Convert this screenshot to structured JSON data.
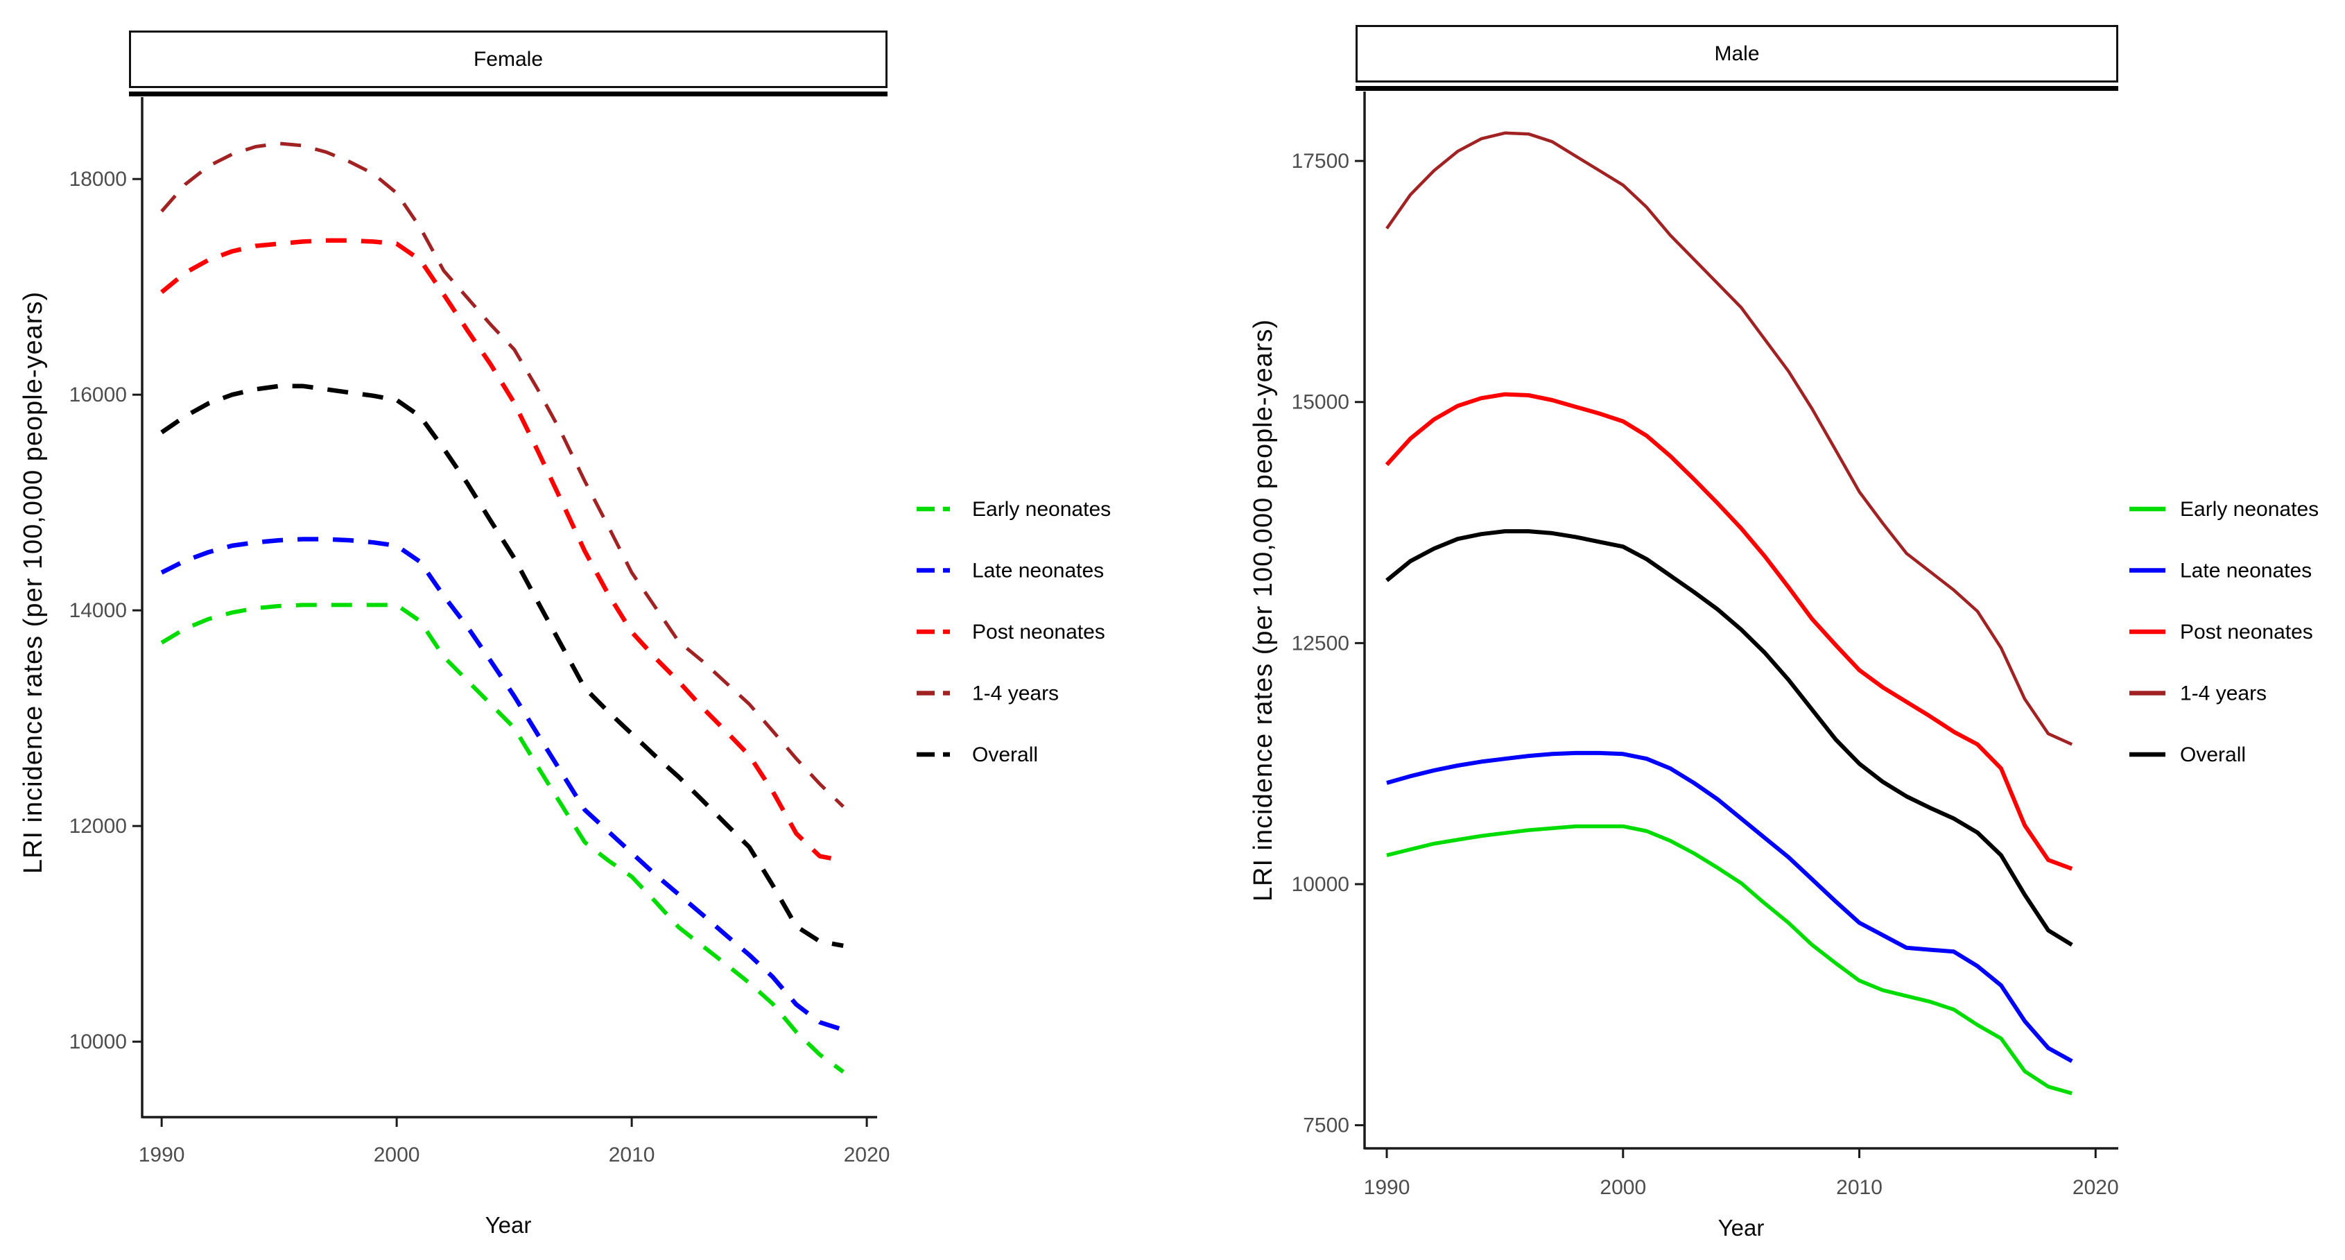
{
  "figure": {
    "background": "#ffffff"
  },
  "chart_data": [
    {
      "type": "line",
      "title": "Female",
      "xlabel": "Year",
      "ylabel": "LRI incidence rates (per 100,000 people-years)",
      "line_style": "dashed",
      "legend_position": "right",
      "grid": false,
      "xlim": [
        1989.17,
        2020.44
      ],
      "ylim": [
        9300,
        18760
      ],
      "xticks": [
        1990,
        2000,
        2010,
        2020
      ],
      "yticks": [
        10000,
        12000,
        14000,
        16000,
        18000
      ],
      "years": [
        1990,
        1991,
        1992,
        1993,
        1994,
        1995,
        1996,
        1997,
        1998,
        1999,
        2000,
        2001,
        2002,
        2003,
        2004,
        2005,
        2006,
        2007,
        2008,
        2009,
        2010,
        2011,
        2012,
        2013,
        2014,
        2015,
        2016,
        2017,
        2018,
        2019
      ],
      "series": [
        {
          "name": "Early neonates",
          "color": "#00DC00",
          "width": 6,
          "values": [
            13700,
            13830,
            13920,
            13980,
            14020,
            14040,
            14050,
            14050,
            14050,
            14050,
            14050,
            13900,
            13570,
            13350,
            13130,
            12910,
            12550,
            12200,
            11850,
            11680,
            11530,
            11300,
            11060,
            10890,
            10720,
            10545,
            10350,
            10090,
            9880,
            9720
          ]
        },
        {
          "name": "Late neonates",
          "color": "#0000FF",
          "width": 6.5,
          "values": [
            14350,
            14460,
            14540,
            14600,
            14630,
            14650,
            14660,
            14660,
            14650,
            14630,
            14600,
            14450,
            14135,
            13850,
            13530,
            13205,
            12850,
            12500,
            12150,
            11950,
            11750,
            11550,
            11365,
            11180,
            10990,
            10805,
            10600,
            10345,
            10180,
            10110
          ]
        },
        {
          "name": "Post neonates",
          "color": "#FF0000",
          "width": 6.5,
          "values": [
            16950,
            17130,
            17250,
            17330,
            17380,
            17400,
            17420,
            17430,
            17430,
            17420,
            17400,
            17250,
            16930,
            16600,
            16280,
            15925,
            15480,
            15020,
            14550,
            14150,
            13800,
            13560,
            13340,
            13100,
            12880,
            12655,
            12320,
            11930,
            11720,
            11680
          ]
        },
        {
          "name": "1-4 years",
          "color": "#A12222",
          "width": 5,
          "values": [
            17700,
            17950,
            18120,
            18230,
            18300,
            18330,
            18310,
            18250,
            18160,
            18050,
            17870,
            17550,
            17150,
            16900,
            16650,
            16420,
            16050,
            15650,
            15200,
            14780,
            14350,
            14030,
            13710,
            13530,
            13330,
            13130,
            12880,
            12625,
            12390,
            12180
          ]
        },
        {
          "name": "Overall",
          "color": "#000000",
          "width": 6.5,
          "values": [
            15650,
            15800,
            15920,
            16000,
            16050,
            16080,
            16080,
            16050,
            16020,
            15990,
            15950,
            15800,
            15500,
            15180,
            14830,
            14485,
            14080,
            13680,
            13280,
            13060,
            12855,
            12650,
            12455,
            12240,
            12020,
            11805,
            11450,
            11070,
            10930,
            10890
          ]
        }
      ]
    },
    {
      "type": "line",
      "title": "Male",
      "xlabel": "Year",
      "ylabel": "LRI incidence rates (per 100,000 people-years)",
      "line_style": "solid",
      "legend_position": "right",
      "grid": false,
      "xlim": [
        1989.06,
        2020.96
      ],
      "ylim": [
        7260,
        18220
      ],
      "xticks": [
        1990,
        2000,
        2010,
        2020
      ],
      "yticks": [
        7500,
        10000,
        12500,
        15000,
        17500
      ],
      "years": [
        1990,
        1991,
        1992,
        1993,
        1994,
        1995,
        1996,
        1997,
        1998,
        1999,
        2000,
        2001,
        2002,
        2003,
        2004,
        2005,
        2006,
        2007,
        2008,
        2009,
        2010,
        2011,
        2012,
        2013,
        2014,
        2015,
        2016,
        2017,
        2018,
        2019
      ],
      "series": [
        {
          "name": "Early neonates",
          "color": "#00DC00",
          "width": 5.5,
          "values": [
            10300,
            10360,
            10420,
            10460,
            10500,
            10530,
            10560,
            10580,
            10600,
            10600,
            10600,
            10550,
            10450,
            10320,
            10170,
            10010,
            9800,
            9600,
            9370,
            9180,
            9000,
            8900,
            8840,
            8780,
            8700,
            8540,
            8400,
            8060,
            7900,
            7830
          ]
        },
        {
          "name": "Late neonates",
          "color": "#0000FF",
          "width": 6,
          "values": [
            11050,
            11120,
            11180,
            11230,
            11270,
            11300,
            11330,
            11350,
            11360,
            11360,
            11350,
            11300,
            11200,
            11050,
            10880,
            10680,
            10480,
            10280,
            10050,
            9820,
            9600,
            9470,
            9340,
            9320,
            9300,
            9150,
            8950,
            8580,
            8300,
            8165
          ]
        },
        {
          "name": "Post neonates",
          "color": "#FF0000",
          "width": 6,
          "values": [
            14350,
            14620,
            14820,
            14960,
            15040,
            15080,
            15070,
            15020,
            14950,
            14880,
            14800,
            14650,
            14440,
            14200,
            13950,
            13690,
            13400,
            13080,
            12750,
            12480,
            12220,
            12040,
            11890,
            11740,
            11580,
            11450,
            11200,
            10610,
            10250,
            10160
          ]
        },
        {
          "name": "1-4 years",
          "color": "#A12222",
          "width": 4.5,
          "values": [
            16800,
            17150,
            17400,
            17600,
            17730,
            17790,
            17780,
            17700,
            17550,
            17400,
            17250,
            17020,
            16730,
            16480,
            16230,
            15980,
            15650,
            15320,
            14930,
            14500,
            14070,
            13740,
            13430,
            13240,
            13050,
            12830,
            12450,
            11920,
            11560,
            11450
          ]
        },
        {
          "name": "Overall",
          "color": "#000000",
          "width": 6,
          "values": [
            13150,
            13350,
            13480,
            13580,
            13630,
            13660,
            13660,
            13640,
            13600,
            13550,
            13500,
            13370,
            13200,
            13030,
            12850,
            12640,
            12400,
            12120,
            11810,
            11500,
            11250,
            11060,
            10910,
            10790,
            10680,
            10535,
            10300,
            9890,
            9520,
            9370
          ]
        }
      ]
    }
  ]
}
